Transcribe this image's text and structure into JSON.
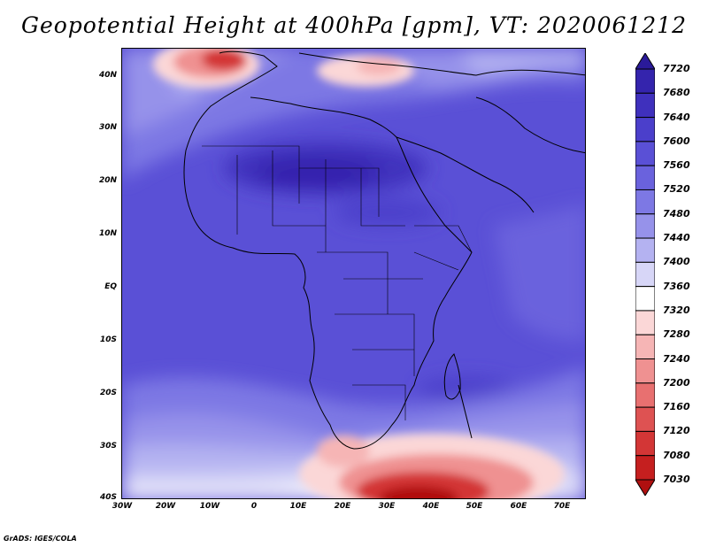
{
  "title": "Geopotential Height at 400hPa [gpm], VT: 2020061212",
  "credit": "GrADS: IGES/COLA",
  "lat_labels": [
    "40N",
    "30N",
    "20N",
    "10N",
    "EQ",
    "10S",
    "20S",
    "30S",
    "40S"
  ],
  "lon_labels": [
    "30W",
    "20W",
    "10W",
    "0",
    "10E",
    "20E",
    "30E",
    "40E",
    "50E",
    "60E",
    "70E"
  ],
  "colorbar": {
    "labels": [
      "7720",
      "7680",
      "7640",
      "7600",
      "7560",
      "7520",
      "7480",
      "7440",
      "7400",
      "7360",
      "7320",
      "7280",
      "7240",
      "7200",
      "7160",
      "7120",
      "7080",
      "7030"
    ],
    "colors": [
      "#2a1a9a",
      "#3424ad",
      "#3f30bd",
      "#4b3fcb",
      "#5a50d6",
      "#6a62dd",
      "#7d78e4",
      "#9692ea",
      "#b4b2f1",
      "#d7d6f7",
      "#ffffff",
      "#fbd7d7",
      "#f6b5b5",
      "#ef9191",
      "#e87070",
      "#de5252",
      "#d33636",
      "#c51f1f",
      "#b01010"
    ],
    "units": "gpm"
  },
  "map": {
    "lon_range": [
      -30,
      75
    ],
    "lat_range": [
      -40,
      45
    ],
    "valid_time": "2020061212",
    "field": "Geopotential Height",
    "level": "400hPa"
  }
}
